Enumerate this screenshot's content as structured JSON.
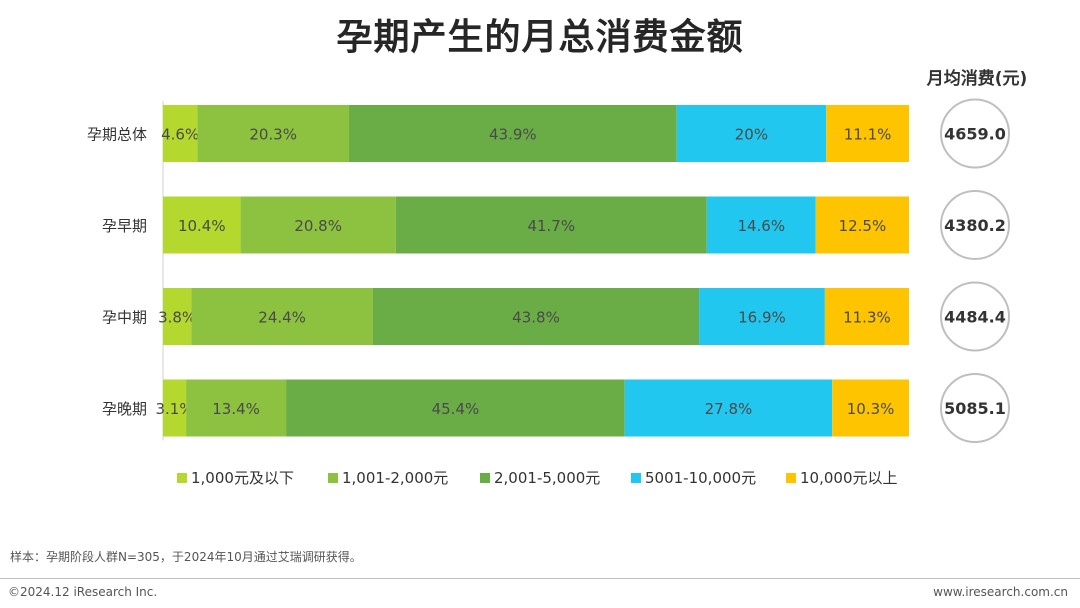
{
  "title": "孕期产生的月总消费金额",
  "avg_title": "月均消费(元)",
  "note": "样本：孕期阶段人群N=305，于2024年10月通过艾瑞调研获得。",
  "copyright": "©2024.12 iResearch Inc.",
  "site": "www.iresearch.com.cn",
  "chart_data": {
    "type": "bar",
    "orientation": "horizontal",
    "stacked": true,
    "categories": [
      "孕期总体",
      "孕早期",
      "孕中期",
      "孕晚期"
    ],
    "series": [
      {
        "name": "1,000元及以下",
        "color": "#b4d82e",
        "values": [
          4.6,
          10.4,
          3.8,
          3.1
        ],
        "labels": [
          "4.6%",
          "10.4%",
          "3.8%",
          "3.1%"
        ]
      },
      {
        "name": "1,001-2,000元",
        "color": "#8cc23f",
        "values": [
          20.3,
          20.8,
          24.4,
          13.4
        ],
        "labels": [
          "20.3%",
          "20.8%",
          "24.4%",
          "13.4%"
        ]
      },
      {
        "name": "2,001-5,000元",
        "color": "#6aad46",
        "values": [
          43.9,
          41.7,
          43.8,
          45.4
        ],
        "labels": [
          "43.9%",
          "41.7%",
          "43.8%",
          "45.4%"
        ]
      },
      {
        "name": "5001-10,000元",
        "color": "#22c7ef",
        "values": [
          20,
          14.6,
          16.9,
          27.8
        ],
        "labels": [
          "20%",
          "14.6%",
          "16.9%",
          "27.8%"
        ]
      },
      {
        "name": "10,000元以上",
        "color": "#fec400",
        "values": [
          11.1,
          12.5,
          11.3,
          10.3
        ],
        "labels": [
          "11.1%",
          "12.5%",
          "11.3%",
          "10.3%"
        ]
      }
    ],
    "monthly_avg": [
      "4659.0",
      "4380.2",
      "4484.4",
      "5085.1"
    ],
    "legend_position": "bottom"
  }
}
